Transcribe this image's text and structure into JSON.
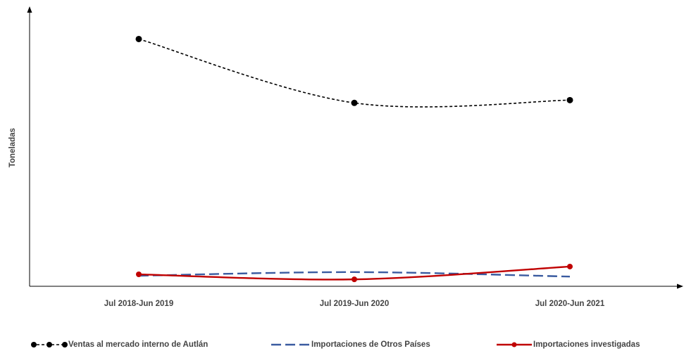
{
  "chart_data": {
    "type": "line",
    "y_label": "Toneladas",
    "categories": [
      "Jul 2018-Jun 2019",
      "Jul 2019-Jun 2020",
      "Jul 2020-Jun 2021"
    ],
    "ylim": [
      0,
      100
    ],
    "series": [
      {
        "name": "Ventas al mercado interno de Autlán",
        "color": "#000000",
        "dash": "4,3",
        "markers": true,
        "values": [
          89,
          66,
          67
        ]
      },
      {
        "name": "Importaciones de Otros Países",
        "color": "#3a5ba0",
        "dash": "14,6",
        "markers": false,
        "values": [
          3.8,
          5.1,
          3.5
        ]
      },
      {
        "name": "Importaciones investigadas",
        "color": "#c00000",
        "dash": "none",
        "markers": true,
        "values": [
          4.3,
          2.5,
          7.1
        ]
      }
    ]
  }
}
